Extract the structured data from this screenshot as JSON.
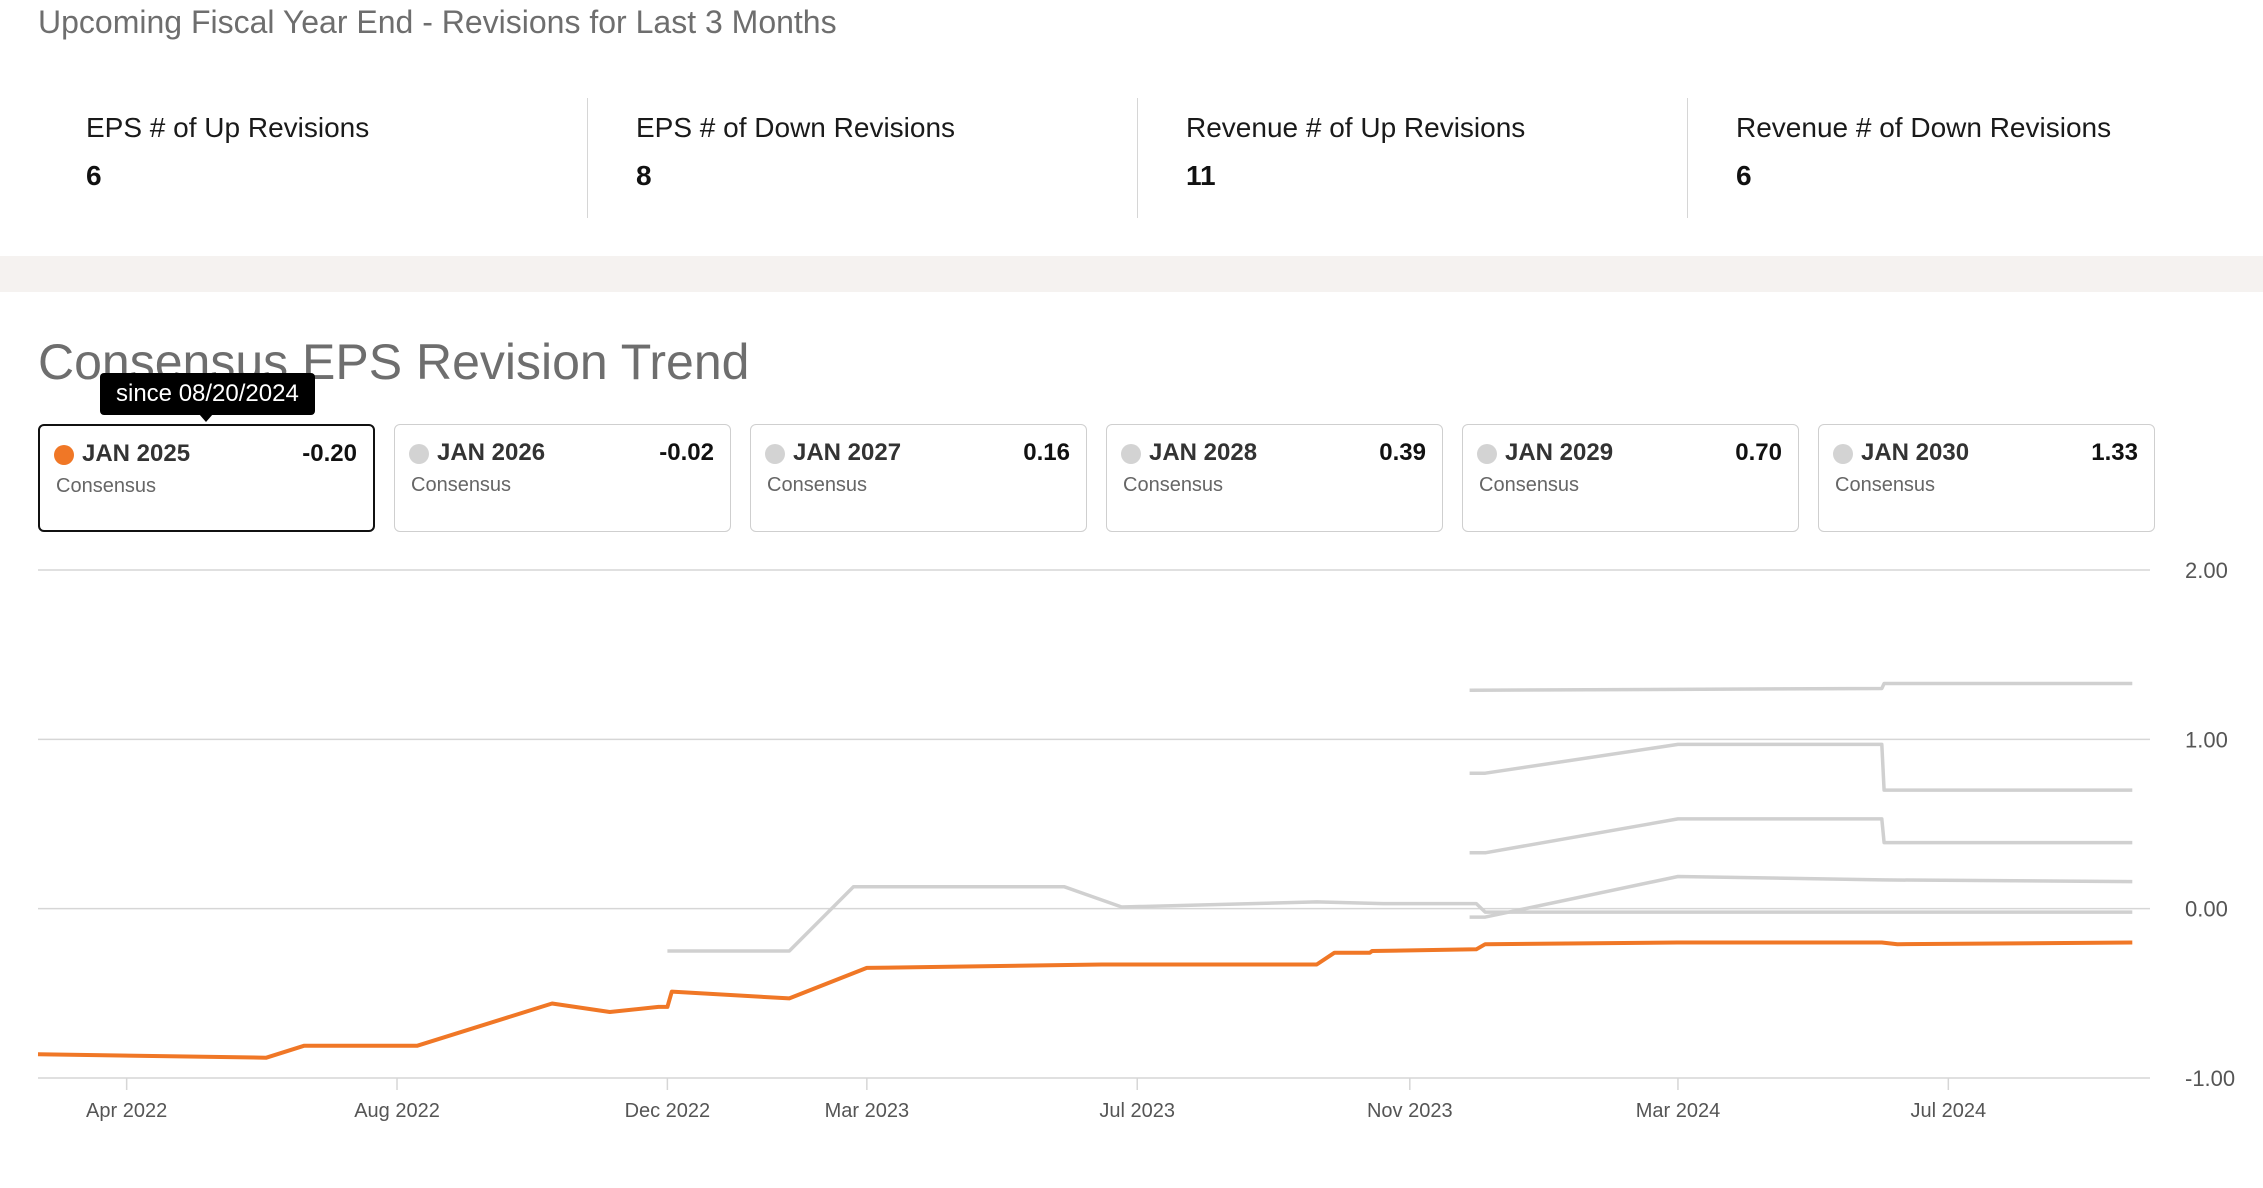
{
  "header": {
    "title": "Upcoming Fiscal Year End - Revisions for Last 3 Months"
  },
  "stats": [
    {
      "label": "EPS # of Up Revisions",
      "value": "6"
    },
    {
      "label": "EPS # of Down Revisions",
      "value": "8"
    },
    {
      "label": "Revenue # of Up Revisions",
      "value": "11"
    },
    {
      "label": "Revenue # of Down Revisions",
      "value": "6"
    }
  ],
  "trend": {
    "title": "Consensus EPS Revision Trend",
    "tooltip": "since 08/20/2024",
    "cards": [
      {
        "year": "JAN 2025",
        "value": "-0.20",
        "sub": "Consensus",
        "active": true
      },
      {
        "year": "JAN 2026",
        "value": "-0.02",
        "sub": "Consensus",
        "active": false
      },
      {
        "year": "JAN 2027",
        "value": "0.16",
        "sub": "Consensus",
        "active": false
      },
      {
        "year": "JAN 2028",
        "value": "0.39",
        "sub": "Consensus",
        "active": false
      },
      {
        "year": "JAN 2029",
        "value": "0.70",
        "sub": "Consensus",
        "active": false
      },
      {
        "year": "JAN 2030",
        "value": "1.33",
        "sub": "Consensus",
        "active": false
      }
    ]
  },
  "colors": {
    "active_series": "#f07726",
    "inactive_series": "#d0d0d0",
    "grid": "#d6d6d6"
  },
  "chart_data": {
    "type": "line",
    "x_tick_labels": [
      "Apr 2022",
      "Aug 2022",
      "Dec 2022",
      "Mar 2023",
      "Jul 2023",
      "Nov 2023",
      "Mar 2024",
      "Jul 2024"
    ],
    "x_tick_dates": [
      "2022-04-01",
      "2022-08-01",
      "2022-12-01",
      "2023-03-01",
      "2023-07-01",
      "2023-11-01",
      "2024-03-01",
      "2024-07-01"
    ],
    "x_range": [
      "2022-02-20",
      "2024-09-30"
    ],
    "y_tick_labels": [
      "2.00",
      "1.00",
      "0.00",
      "-1.00"
    ],
    "y_ticks": [
      2,
      1,
      0,
      -1
    ],
    "ylim": [
      -1,
      2
    ],
    "grid": true,
    "series": [
      {
        "name": "JAN 2025",
        "active": true,
        "points": [
          [
            "2022-02-20",
            -0.86
          ],
          [
            "2022-06-03",
            -0.88
          ],
          [
            "2022-06-20",
            -0.81
          ],
          [
            "2022-08-10",
            -0.81
          ],
          [
            "2022-10-10",
            -0.56
          ],
          [
            "2022-11-05",
            -0.61
          ],
          [
            "2022-11-27",
            -0.58
          ],
          [
            "2022-12-01",
            -0.58
          ],
          [
            "2022-12-03",
            -0.49
          ],
          [
            "2023-01-25",
            -0.53
          ],
          [
            "2023-03-01",
            -0.35
          ],
          [
            "2023-06-15",
            -0.33
          ],
          [
            "2023-09-20",
            -0.33
          ],
          [
            "2023-09-28",
            -0.26
          ],
          [
            "2023-10-14",
            -0.26
          ],
          [
            "2023-10-15",
            -0.25
          ],
          [
            "2023-12-01",
            -0.24
          ],
          [
            "2023-12-05",
            -0.21
          ],
          [
            "2024-03-01",
            -0.2
          ],
          [
            "2024-06-01",
            -0.2
          ],
          [
            "2024-06-08",
            -0.21
          ],
          [
            "2024-09-22",
            -0.2
          ]
        ]
      },
      {
        "name": "JAN 2026",
        "active": false,
        "points": [
          [
            "2022-12-01",
            -0.25
          ],
          [
            "2023-01-25",
            -0.25
          ],
          [
            "2023-02-23",
            0.13
          ],
          [
            "2023-05-29",
            0.13
          ],
          [
            "2023-06-24",
            0.01
          ],
          [
            "2023-09-20",
            0.04
          ],
          [
            "2023-10-20",
            0.03
          ],
          [
            "2023-12-01",
            0.03
          ],
          [
            "2023-12-05",
            -0.02
          ],
          [
            "2024-09-22",
            -0.02
          ]
        ]
      },
      {
        "name": "JAN 2027",
        "active": false,
        "points": [
          [
            "2023-11-28",
            -0.05
          ],
          [
            "2023-12-05",
            -0.05
          ],
          [
            "2024-03-01",
            0.19
          ],
          [
            "2024-06-01",
            0.17
          ],
          [
            "2024-09-22",
            0.16
          ]
        ]
      },
      {
        "name": "JAN 2028",
        "active": false,
        "points": [
          [
            "2023-11-28",
            0.33
          ],
          [
            "2023-12-05",
            0.33
          ],
          [
            "2024-03-01",
            0.53
          ],
          [
            "2024-06-01",
            0.53
          ],
          [
            "2024-06-02",
            0.39
          ],
          [
            "2024-09-22",
            0.39
          ]
        ]
      },
      {
        "name": "JAN 2029",
        "active": false,
        "points": [
          [
            "2023-11-28",
            0.8
          ],
          [
            "2023-12-05",
            0.8
          ],
          [
            "2024-03-01",
            0.97
          ],
          [
            "2024-06-01",
            0.97
          ],
          [
            "2024-06-02",
            0.7
          ],
          [
            "2024-09-22",
            0.7
          ]
        ]
      },
      {
        "name": "JAN 2030",
        "active": false,
        "points": [
          [
            "2023-11-28",
            1.29
          ],
          [
            "2024-06-01",
            1.3
          ],
          [
            "2024-06-02",
            1.33
          ],
          [
            "2024-09-22",
            1.33
          ]
        ]
      }
    ]
  }
}
